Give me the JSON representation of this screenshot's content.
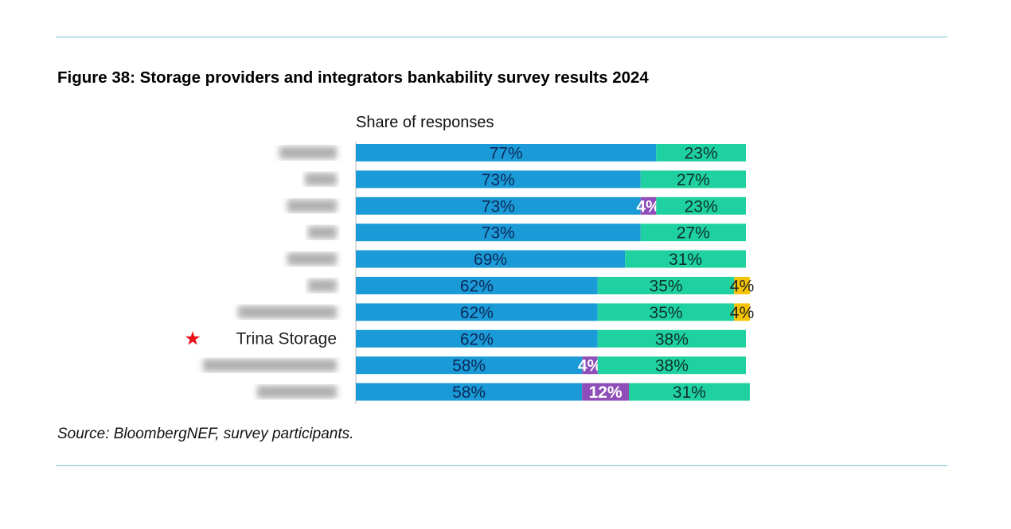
{
  "figure": {
    "title": "Figure 38: Storage providers and integrators bankability survey results 2024",
    "source": "Source: BloombergNEF, survey participants."
  },
  "chart_data": {
    "type": "bar",
    "orientation": "horizontal",
    "stacked": true,
    "title": "Figure 38: Storage providers and integrators bankability survey results 2024",
    "subtitle": "Share of responses",
    "xlabel": "",
    "ylabel": "",
    "xlim": [
      0,
      100
    ],
    "unit": "%",
    "grid": false,
    "legend": "none",
    "categories": [
      "",
      "",
      "",
      "",
      "",
      "",
      "",
      "Trina Storage",
      "",
      ""
    ],
    "highlight": {
      "category": "Trina Storage",
      "marker": "star",
      "color": "#e8101a"
    },
    "series": [
      {
        "color": "#1a9ad6",
        "label_color": "#0d2a5a",
        "values": [
          77,
          73,
          73,
          73,
          69,
          62,
          62,
          62,
          58,
          58
        ]
      },
      {
        "color": "#8e4db8",
        "label_color": "#ffffff",
        "values": [
          0,
          0,
          4,
          0,
          0,
          0,
          0,
          0,
          4,
          12
        ]
      },
      {
        "color": "#1fd1a0",
        "label_color": "#10302a",
        "values": [
          23,
          27,
          23,
          27,
          31,
          35,
          35,
          38,
          38,
          31
        ]
      },
      {
        "color": "#f5c400",
        "label_color": "#222222",
        "values": [
          0,
          0,
          0,
          0,
          0,
          4,
          4,
          0,
          0,
          0
        ]
      }
    ]
  }
}
